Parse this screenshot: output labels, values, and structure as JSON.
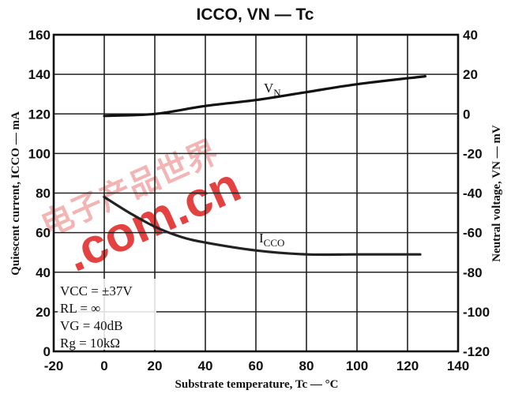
{
  "chart_data": {
    "type": "line",
    "title": "ICCO, VN — Tc",
    "xlabel": "Substrate temperature, Tc — °C",
    "ylabel_left": "Quiescent current, ICCO — mA",
    "ylabel_right": "Neutral voltage, VN — mV",
    "xlim": [
      -20,
      140
    ],
    "ylim_left": [
      0,
      160
    ],
    "ylim_right": [
      -120,
      40
    ],
    "x_ticks": [
      "-20",
      "0",
      "20",
      "40",
      "60",
      "80",
      "100",
      "120",
      "140"
    ],
    "y_left_ticks": [
      "0",
      "20",
      "40",
      "60",
      "80",
      "100",
      "120",
      "140",
      "160"
    ],
    "y_right_ticks": [
      "-120",
      "-100",
      "-80",
      "-60",
      "-40",
      "-20",
      "0",
      "20",
      "40"
    ],
    "grid": true,
    "series": [
      {
        "name": "VN",
        "axis": "right",
        "color": "#111111",
        "x": [
          0,
          20,
          40,
          60,
          80,
          100,
          127
        ],
        "y": [
          -1,
          0,
          4,
          7,
          11,
          15,
          19
        ]
      },
      {
        "name": "ICCO",
        "axis": "left",
        "color": "#222222",
        "x": [
          0,
          10,
          20,
          30,
          40,
          60,
          80,
          100,
          125
        ],
        "y": [
          78,
          70,
          63,
          58,
          55,
          51,
          49,
          49,
          49
        ]
      }
    ],
    "conditions": [
      "VCC = ±37V",
      "RL = ∞",
      "VG = 40dB",
      "Rg = 10kΩ"
    ]
  },
  "watermark": {
    "text": ".com.cn",
    "color": "#e02020"
  }
}
